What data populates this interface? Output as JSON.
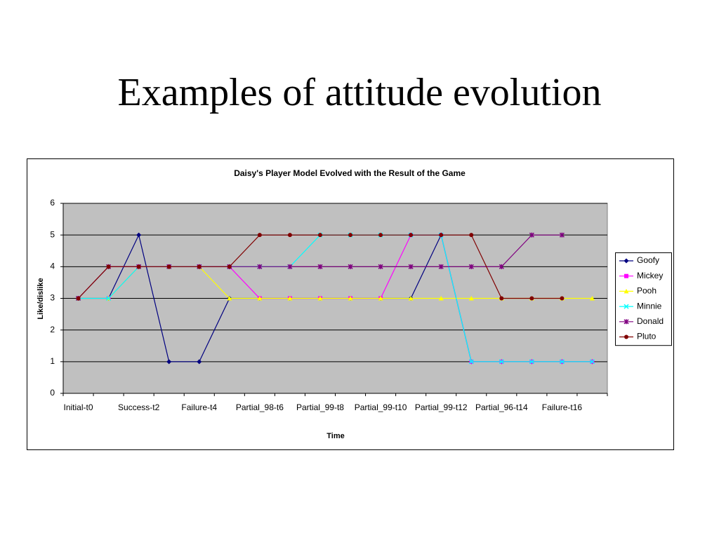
{
  "slide_title": "Examples of attitude evolution",
  "chart_data": {
    "type": "line",
    "title": "Daisy's Player Model Evolved with the Result of the Game",
    "x_label": "Time",
    "y_label": "Like/dislike",
    "categories": [
      "Initial-t0",
      null,
      "Success-t2",
      null,
      "Failure-t4",
      null,
      "Partial_98-t6",
      null,
      "Partial_99-t8",
      null,
      "Partial_99-t10",
      null,
      "Partial_99-t12",
      null,
      "Partial_96-t14",
      null,
      "Failure-t16",
      null
    ],
    "ylim": [
      0,
      6
    ],
    "yticks": [
      0,
      1,
      2,
      3,
      4,
      5,
      6
    ],
    "grid": true,
    "legend": "right",
    "series": [
      {
        "name": "Goofy",
        "color": "#000080",
        "marker": "diamond",
        "values": [
          3,
          3,
          5,
          1,
          1,
          3,
          3,
          3,
          3,
          3,
          3,
          3,
          5,
          1,
          1,
          1,
          1,
          1
        ]
      },
      {
        "name": "Mickey",
        "color": "#ff00ff",
        "marker": "square",
        "values": [
          3,
          3,
          4,
          4,
          4,
          4,
          3,
          3,
          3,
          3,
          3,
          5,
          5,
          1,
          1,
          1,
          1,
          1
        ]
      },
      {
        "name": "Pooh",
        "color": "#ffff00",
        "marker": "triangle",
        "values": [
          3,
          3,
          4,
          4,
          4,
          3,
          3,
          3,
          3,
          3,
          3,
          3,
          3,
          3,
          3,
          3,
          3,
          3
        ]
      },
      {
        "name": "Minnie",
        "color": "#00ffff",
        "marker": "x",
        "values": [
          3,
          3,
          4,
          4,
          4,
          4,
          4,
          4,
          5,
          5,
          5,
          5,
          5,
          1,
          1,
          1,
          1,
          1
        ]
      },
      {
        "name": "Donald",
        "color": "#800080",
        "marker": "star",
        "values": [
          3,
          4,
          4,
          4,
          4,
          4,
          4,
          4,
          4,
          4,
          4,
          4,
          4,
          4,
          4,
          5,
          5,
          null
        ]
      },
      {
        "name": "Pluto",
        "color": "#800000",
        "marker": "circle",
        "values": [
          3,
          4,
          4,
          4,
          4,
          4,
          5,
          5,
          5,
          5,
          5,
          5,
          5,
          5,
          3,
          3,
          3,
          null
        ]
      }
    ]
  }
}
